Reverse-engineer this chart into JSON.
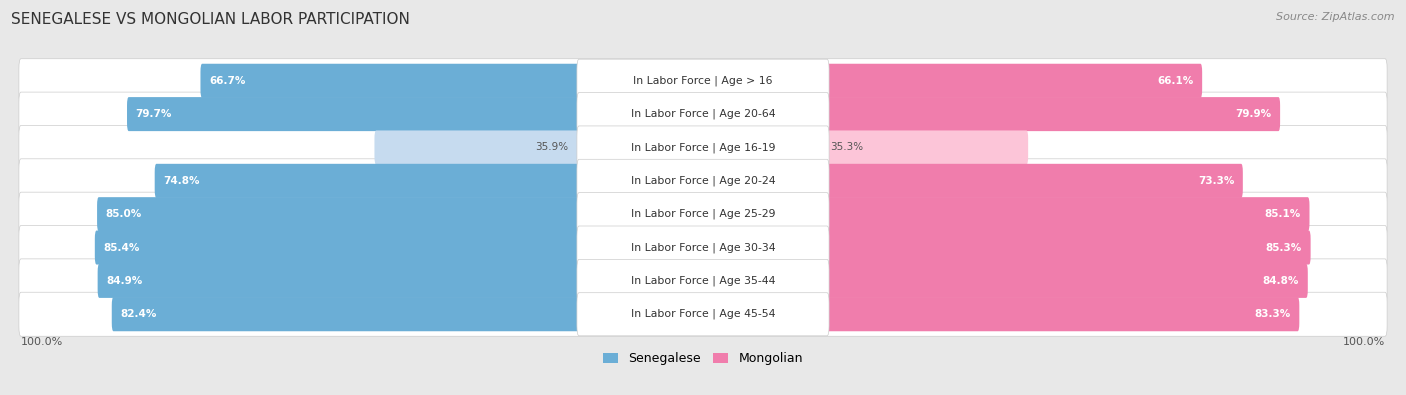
{
  "title": "SENEGALESE VS MONGOLIAN LABOR PARTICIPATION",
  "source": "Source: ZipAtlas.com",
  "categories": [
    "In Labor Force | Age > 16",
    "In Labor Force | Age 20-64",
    "In Labor Force | Age 16-19",
    "In Labor Force | Age 20-24",
    "In Labor Force | Age 25-29",
    "In Labor Force | Age 30-34",
    "In Labor Force | Age 35-44",
    "In Labor Force | Age 45-54"
  ],
  "senegalese": [
    66.7,
    79.7,
    35.9,
    74.8,
    85.0,
    85.4,
    84.9,
    82.4
  ],
  "mongolian": [
    66.1,
    79.9,
    35.3,
    73.3,
    85.1,
    85.3,
    84.8,
    83.3
  ],
  "sen_color_full": "#6baed6",
  "sen_color_light": "#c6dbef",
  "mon_color_full": "#f07dac",
  "mon_color_light": "#fcc5d8",
  "bg_color": "#e8e8e8",
  "row_bg": "#ffffff",
  "row_border": "#cccccc",
  "max_value": 100.0,
  "legend_labels": [
    "Senegalese",
    "Mongolian"
  ]
}
